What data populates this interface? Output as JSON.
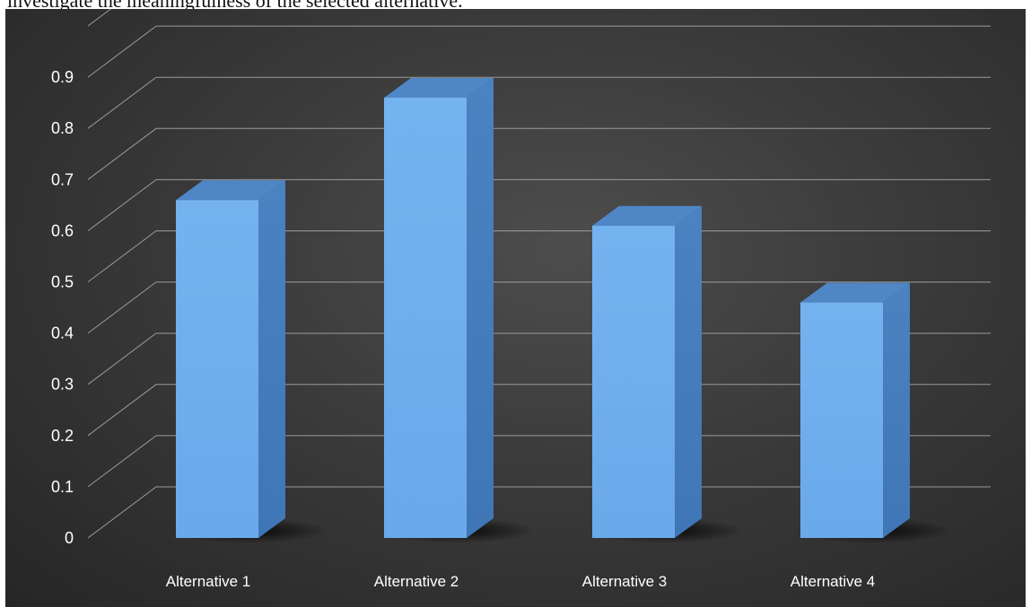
{
  "caption": "investigate the meaningfulness of the selected alternative.",
  "colors": {
    "bar_front": "#6aa9ea",
    "bar_side": "#3f76b6",
    "bar_top": "#4f86c6",
    "gridline": "#9a9a9a",
    "panel_background": "#3a3a3a"
  },
  "chart_data": {
    "type": "bar",
    "style": "3d-column",
    "categories": [
      "Alternative 1",
      "Alternative 2",
      "Alternative 3",
      "Alternative 4"
    ],
    "values": [
      0.66,
      0.86,
      0.61,
      0.46
    ],
    "yticks": [
      "0",
      "0.1",
      "0.2",
      "0.3",
      "0.4",
      "0.5",
      "0.6",
      "0.7",
      "0.8",
      "0.9"
    ],
    "ylim": [
      0,
      1
    ],
    "grid": true,
    "legend": "none",
    "title": "",
    "xlabel": "",
    "ylabel": ""
  }
}
